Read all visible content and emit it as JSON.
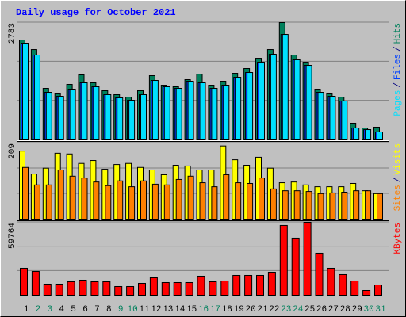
{
  "title": "Daily usage for October 2021",
  "legend_separator": "/",
  "chart_data": [
    {
      "type": "bar",
      "ylim": [
        0,
        2783
      ],
      "yticks": [
        2783
      ],
      "grid": true,
      "series": [
        {
          "name": "Hits",
          "color": "#00805c",
          "values": [
            2369,
            2143,
            1222,
            1109,
            1316,
            1542,
            1354,
            1166,
            1072,
            1015,
            1166,
            1523,
            1297,
            1260,
            1429,
            1560,
            1297,
            1391,
            1579,
            1692,
            1936,
            2143,
            2783,
            2012,
            1842,
            1203,
            1109,
            1015,
            395,
            282,
            301
          ]
        },
        {
          "name": "Files",
          "color": "#0040ff",
          "values": [
            2294,
            2012,
            1128,
            1034,
            1203,
            1354,
            1260,
            1072,
            997,
            940,
            1072,
            1410,
            1260,
            1222,
            1391,
            1354,
            1222,
            1297,
            1485,
            1598,
            1842,
            2030,
            2500,
            1899,
            1767,
            1128,
            1034,
            921,
            282,
            244,
            188
          ]
        },
        {
          "name": "Pages",
          "color": "#00e0ff",
          "values": [
            2294,
            2012,
            1128,
            1034,
            1203,
            1354,
            1260,
            1072,
            997,
            940,
            1072,
            1410,
            1260,
            1222,
            1391,
            1354,
            1222,
            1297,
            1485,
            1598,
            1842,
            2030,
            2500,
            1899,
            1767,
            1128,
            1034,
            921,
            282,
            244,
            188
          ]
        }
      ]
    },
    {
      "type": "bar",
      "ylim": [
        0,
        209
      ],
      "yticks": [
        209
      ],
      "grid": true,
      "series": [
        {
          "name": "Visits",
          "color": "#ffff00",
          "values": [
            187,
            124,
            140,
            181,
            179,
            153,
            161,
            137,
            150,
            153,
            142,
            135,
            122,
            148,
            146,
            135,
            135,
            201,
            163,
            148,
            170,
            140,
            100,
            102,
            94,
            89,
            89,
            89,
            98,
            78,
            70
          ]
        },
        {
          "name": "Sites",
          "color": "#ff8000",
          "values": [
            142,
            94,
            94,
            135,
            118,
            113,
            102,
            92,
            105,
            89,
            105,
            96,
            94,
            109,
            118,
            100,
            89,
            122,
            100,
            98,
            113,
            83,
            78,
            78,
            76,
            70,
            72,
            74,
            78,
            78,
            70
          ]
        }
      ]
    },
    {
      "type": "bar",
      "ylim": [
        0,
        59764
      ],
      "yticks": [
        59764
      ],
      "grid": true,
      "categories": [
        "1",
        "2",
        "3",
        "4",
        "5",
        "6",
        "7",
        "8",
        "9",
        "10",
        "11",
        "12",
        "13",
        "14",
        "15",
        "16",
        "17",
        "18",
        "19",
        "20",
        "21",
        "22",
        "23",
        "24",
        "25",
        "26",
        "27",
        "28",
        "29",
        "30",
        "31"
      ],
      "category_colors": [
        "#000000",
        "#00805c",
        "#00805c",
        "#000000",
        "#000000",
        "#000000",
        "#000000",
        "#000000",
        "#00805c",
        "#00805c",
        "#000000",
        "#000000",
        "#000000",
        "#000000",
        "#000000",
        "#00805c",
        "#00805c",
        "#000000",
        "#000000",
        "#000000",
        "#000000",
        "#000000",
        "#00805c",
        "#00805c",
        "#000000",
        "#000000",
        "#000000",
        "#000000",
        "#000000",
        "#00805c",
        "#00805c"
      ],
      "series": [
        {
          "name": "KBytes",
          "color": "#ff0000",
          "values": [
            22100,
            19500,
            9100,
            9100,
            11050,
            12350,
            11050,
            11050,
            7150,
            7150,
            9750,
            14300,
            10400,
            10400,
            10400,
            15600,
            11050,
            11700,
            16250,
            16250,
            16250,
            18850,
            57200,
            46800,
            59764,
            34450,
            22100,
            16900,
            11700,
            3900,
            8450
          ]
        }
      ]
    }
  ]
}
